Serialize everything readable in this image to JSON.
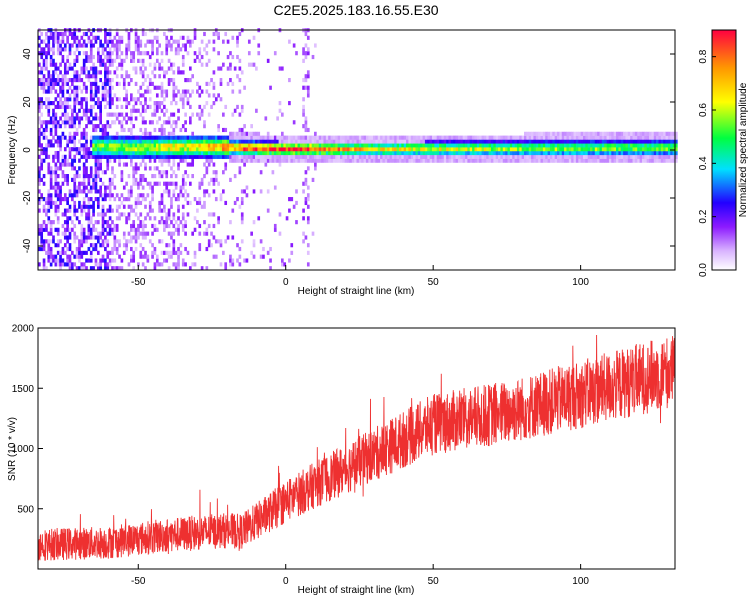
{
  "title": "C2E5.2025.183.16.55.E30",
  "chart_data": [
    {
      "type": "heatmap",
      "xlabel": "Height of straight line (km)",
      "ylabel": "Frequency (Hz)",
      "xlim": [
        -84,
        132
      ],
      "ylim": [
        -50,
        50
      ],
      "xticks": [
        -50,
        0,
        50,
        100
      ],
      "yticks": [
        -40,
        -20,
        0,
        20,
        40
      ],
      "colorbar": {
        "label": "Normalized spectral amplitude",
        "range": [
          0.0,
          0.9
        ],
        "ticks": [
          0.0,
          0.2,
          0.4,
          0.6,
          0.8
        ],
        "colors": [
          "#ffffff",
          "#d9b3ff",
          "#8c1aff",
          "#2200ff",
          "#00e0ff",
          "#00ff40",
          "#ffff00",
          "#ff9900",
          "#ff0040"
        ]
      },
      "signal": {
        "center_frequency_hz": [
          {
            "x": -66,
            "y": 1.5
          },
          {
            "x": -50,
            "y": 1.0
          },
          {
            "x": -30,
            "y": 1.5
          },
          {
            "x": 0,
            "y": 0.5
          },
          {
            "x": 30,
            "y": 0.5
          },
          {
            "x": 80,
            "y": 0.8
          },
          {
            "x": 132,
            "y": 1.0
          }
        ],
        "amplitude": [
          {
            "x": -66,
            "a": 0.45
          },
          {
            "x": -30,
            "a": 0.6
          },
          {
            "x": -10,
            "a": 0.85
          },
          {
            "x": 10,
            "a": 0.75
          },
          {
            "x": 30,
            "a": 0.55
          },
          {
            "x": 80,
            "a": 0.5
          },
          {
            "x": 132,
            "a": 0.48
          }
        ],
        "start_x": -66
      }
    },
    {
      "type": "line",
      "xlabel": "Height of straight line (km)",
      "ylabel": "SNR (10 * v/v)",
      "xlim": [
        -84,
        132
      ],
      "ylim": [
        0,
        2000
      ],
      "xticks": [
        -50,
        0,
        50,
        100
      ],
      "yticks": [
        500,
        1000,
        1500,
        2000
      ],
      "color": "#ee3030",
      "trend": [
        {
          "x": -84,
          "y": 200
        },
        {
          "x": -60,
          "y": 220
        },
        {
          "x": -40,
          "y": 280
        },
        {
          "x": -20,
          "y": 320
        },
        {
          "x": -15,
          "y": 310
        },
        {
          "x": 0,
          "y": 560
        },
        {
          "x": 10,
          "y": 700
        },
        {
          "x": 30,
          "y": 950
        },
        {
          "x": 50,
          "y": 1200
        },
        {
          "x": 75,
          "y": 1300
        },
        {
          "x": 100,
          "y": 1450
        },
        {
          "x": 132,
          "y": 1650
        }
      ]
    }
  ]
}
